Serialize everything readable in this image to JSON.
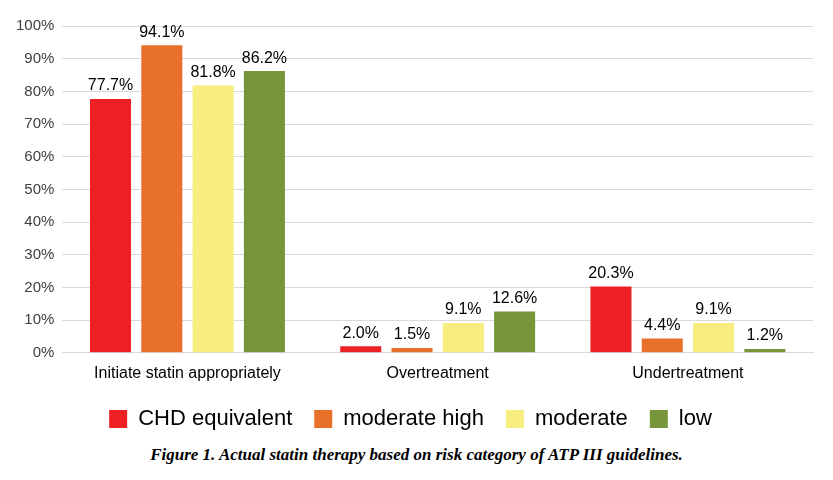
{
  "chart_data": {
    "type": "bar",
    "title": "Figure 1. Actual statin therapy based on risk category of ATP III guidelines.",
    "categories": [
      "Initiate statin appropriately",
      "Overtreatment",
      "Undertreatment"
    ],
    "series": [
      {
        "name": "CHD equivalent",
        "color": "#ed2024",
        "values": [
          77.7,
          2.0,
          20.3
        ],
        "value_labels": [
          "77.7%",
          "2.0%",
          "20.3%"
        ]
      },
      {
        "name": "moderate high",
        "color": "#e8702a",
        "values": [
          94.1,
          1.5,
          4.4
        ],
        "value_labels": [
          "94.1%",
          "1.5%",
          "4.4%"
        ]
      },
      {
        "name": "moderate",
        "color": "#f7ee7f",
        "values": [
          81.8,
          9.1,
          9.1
        ],
        "value_labels": [
          "81.8%",
          "9.1%",
          "9.1%"
        ]
      },
      {
        "name": "low",
        "color": "#77963a",
        "values": [
          86.2,
          12.6,
          1.2
        ],
        "value_labels": [
          "86.2%",
          "12.6%",
          "1.2%"
        ]
      }
    ],
    "ylim": [
      0,
      100
    ],
    "yticks": [
      {
        "value": 0,
        "label": "0%"
      },
      {
        "value": 10,
        "label": "10%"
      },
      {
        "value": 20,
        "label": "20%"
      },
      {
        "value": 30,
        "label": "30%"
      },
      {
        "value": 40,
        "label": "40%"
      },
      {
        "value": 50,
        "label": "50%"
      },
      {
        "value": 60,
        "label": "60%"
      },
      {
        "value": 70,
        "label": "70%"
      },
      {
        "value": 80,
        "label": "80%"
      },
      {
        "value": 90,
        "label": "90%"
      },
      {
        "value": 100,
        "label": "100%"
      }
    ],
    "grid": true,
    "legend": "bottom",
    "data_labels": true
  }
}
